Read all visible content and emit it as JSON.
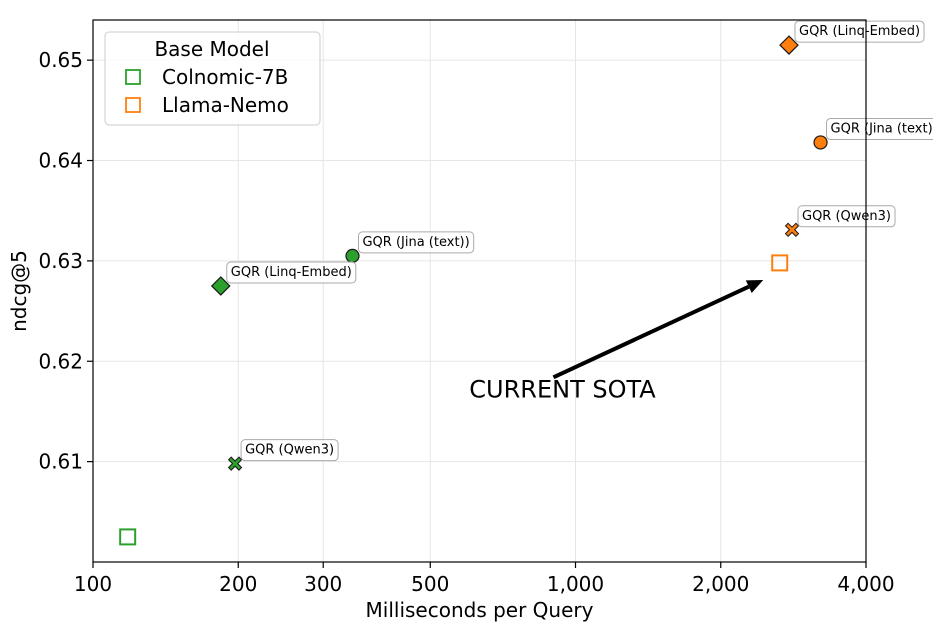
{
  "chart_data": {
    "type": "scatter",
    "xlabel": "Milliseconds per Query",
    "ylabel": "ndcg@5",
    "x_scale": "log",
    "xlim": [
      100,
      4000
    ],
    "ylim": [
      0.6,
      0.654
    ],
    "x_ticks": [
      100,
      200,
      300,
      500,
      1000,
      2000,
      4000
    ],
    "x_tick_labels": [
      "100",
      "200",
      "300",
      "500",
      "1,000",
      "2,000",
      "4,000"
    ],
    "y_ticks": [
      0.61,
      0.62,
      0.63,
      0.64,
      0.65
    ],
    "y_tick_labels": [
      "0.61",
      "0.62",
      "0.63",
      "0.64",
      "0.65"
    ],
    "grid": true,
    "legend": {
      "title": "Base Model",
      "placement": "top-left",
      "entries": [
        {
          "label": "Colnomic-7B",
          "color": "#2ca02c"
        },
        {
          "label": "Llama-Nemo",
          "color": "#ff7f0e"
        }
      ]
    },
    "series": [
      {
        "name": "Colnomic-7B",
        "color": "#2ca02c",
        "points": [
          {
            "x": 118,
            "y": 0.6025,
            "marker": "square-open",
            "label": ""
          },
          {
            "x": 184,
            "y": 0.6275,
            "marker": "diamond",
            "label": "GQR (Linq-Embed)"
          },
          {
            "x": 197,
            "y": 0.6098,
            "marker": "x",
            "label": "GQR (Qwen3)"
          },
          {
            "x": 345,
            "y": 0.6305,
            "marker": "circle",
            "label": "GQR (Jina (text))"
          }
        ]
      },
      {
        "name": "Llama-Nemo",
        "color": "#ff7f0e",
        "points": [
          {
            "x": 2650,
            "y": 0.6298,
            "marker": "square-open",
            "label": ""
          },
          {
            "x": 2770,
            "y": 0.6515,
            "marker": "diamond",
            "label": "GQR (Linq-Embed)"
          },
          {
            "x": 2810,
            "y": 0.6331,
            "marker": "x",
            "label": "GQR (Qwen3)"
          },
          {
            "x": 3220,
            "y": 0.6418,
            "marker": "circle",
            "label": "GQR (Jina (text))"
          }
        ]
      }
    ],
    "annotation": {
      "text": "CURRENT SOTA",
      "text_x": 1000,
      "text_y": 0.6173,
      "arrow_from_x": 900,
      "arrow_from_y": 0.6184,
      "arrow_to_x": 2450,
      "arrow_to_y": 0.6281
    }
  }
}
